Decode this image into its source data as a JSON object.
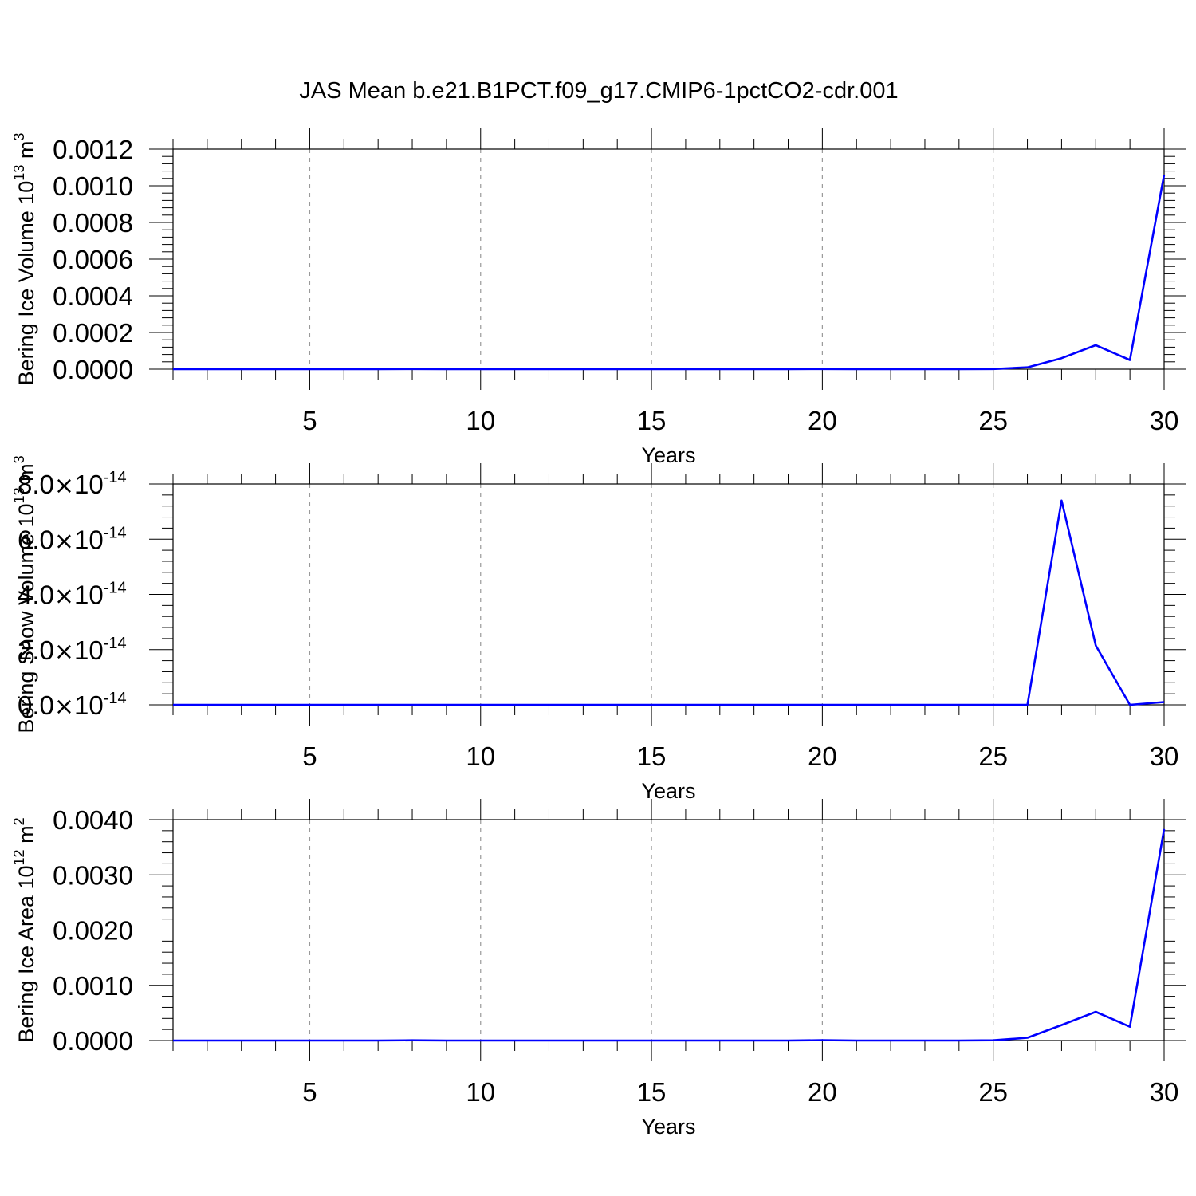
{
  "title": "JAS Mean b.e21.B1PCT.f09_g17.CMIP6-1pctCO2-cdr.001",
  "colors": {
    "line": "#0000ff",
    "grid": "#999999"
  },
  "chart_data": [
    {
      "type": "line",
      "xlabel": "Years",
      "ylabel": {
        "main": "Bering Ice Volume 10",
        "exp": "13",
        "unit": " m",
        "unit_exp": "3"
      },
      "xlim": [
        1,
        30
      ],
      "ylim": [
        0,
        0.0012
      ],
      "xticks": [
        5,
        10,
        15,
        20,
        25,
        30
      ],
      "yticks": [
        0,
        0.0002,
        0.0004,
        0.0006,
        0.0008,
        0.001,
        0.0012
      ],
      "ytick_labels": [
        "0.0000",
        "0.0002",
        "0.0004",
        "0.0006",
        "0.0008",
        "0.0010",
        "0.0012"
      ],
      "grid": "vertical dashed at major x ticks",
      "x": [
        1,
        2,
        3,
        4,
        5,
        6,
        7,
        8,
        9,
        10,
        11,
        12,
        13,
        14,
        15,
        16,
        17,
        18,
        19,
        20,
        21,
        22,
        23,
        24,
        25,
        26,
        27,
        28,
        29,
        30
      ],
      "values": [
        0,
        0,
        0,
        0,
        0,
        0,
        0,
        1e-06,
        0,
        0,
        0,
        0,
        0,
        0,
        0,
        0,
        0,
        0,
        0,
        1e-06,
        0,
        0,
        0,
        0,
        1e-06,
        1e-05,
        6e-05,
        0.000131,
        5e-05,
        0.00106
      ]
    },
    {
      "type": "line",
      "xlabel": "Years",
      "ylabel": {
        "main": "Bering Snow Volume 10",
        "exp": "13",
        "unit": " m",
        "unit_exp": "3"
      },
      "xlim": [
        1,
        30
      ],
      "ylim": [
        0,
        8e-14
      ],
      "xticks": [
        5,
        10,
        15,
        20,
        25,
        30
      ],
      "yticks": [
        0,
        2e-14,
        4e-14,
        6e-14,
        8e-14
      ],
      "ytick_labels": [
        {
          "mant": "0.0",
          "base": "10",
          "exp": "-14"
        },
        {
          "mant": "2.0",
          "base": "10",
          "exp": "-14"
        },
        {
          "mant": "4.0",
          "base": "10",
          "exp": "-14"
        },
        {
          "mant": "6.0",
          "base": "10",
          "exp": "-14"
        },
        {
          "mant": "8.0",
          "base": "10",
          "exp": "-14"
        }
      ],
      "grid": "vertical dashed at major x ticks",
      "x": [
        1,
        2,
        3,
        4,
        5,
        6,
        7,
        8,
        9,
        10,
        11,
        12,
        13,
        14,
        15,
        16,
        17,
        18,
        19,
        20,
        21,
        22,
        23,
        24,
        25,
        26,
        27,
        28,
        29,
        30
      ],
      "values": [
        0,
        0,
        0,
        0,
        0,
        0,
        0,
        0,
        0,
        0,
        0,
        0,
        0,
        0,
        0,
        0,
        0,
        0,
        0,
        0,
        0,
        0,
        0,
        0,
        0,
        0,
        7.4e-14,
        2.15e-14,
        0,
        1e-15
      ]
    },
    {
      "type": "line",
      "xlabel": "Years",
      "ylabel": {
        "main": "Bering Ice Area 10",
        "exp": "12",
        "unit": " m",
        "unit_exp": "2"
      },
      "xlim": [
        1,
        30
      ],
      "ylim": [
        0,
        0.004
      ],
      "xticks": [
        5,
        10,
        15,
        20,
        25,
        30
      ],
      "yticks": [
        0,
        0.001,
        0.002,
        0.003,
        0.004
      ],
      "ytick_labels": [
        "0.0000",
        "0.0010",
        "0.0020",
        "0.0030",
        "0.0040"
      ],
      "grid": "vertical dashed at major x ticks",
      "x": [
        1,
        2,
        3,
        4,
        5,
        6,
        7,
        8,
        9,
        10,
        11,
        12,
        13,
        14,
        15,
        16,
        17,
        18,
        19,
        20,
        21,
        22,
        23,
        24,
        25,
        26,
        27,
        28,
        29,
        30
      ],
      "values": [
        0,
        0,
        0,
        0,
        0,
        0,
        0,
        4e-06,
        0,
        0,
        0,
        0,
        0,
        0,
        0,
        0,
        0,
        0,
        0,
        6e-06,
        0,
        0,
        0,
        0,
        4e-06,
        5e-05,
        0.00028,
        0.00052,
        0.00025,
        0.00383
      ]
    }
  ]
}
